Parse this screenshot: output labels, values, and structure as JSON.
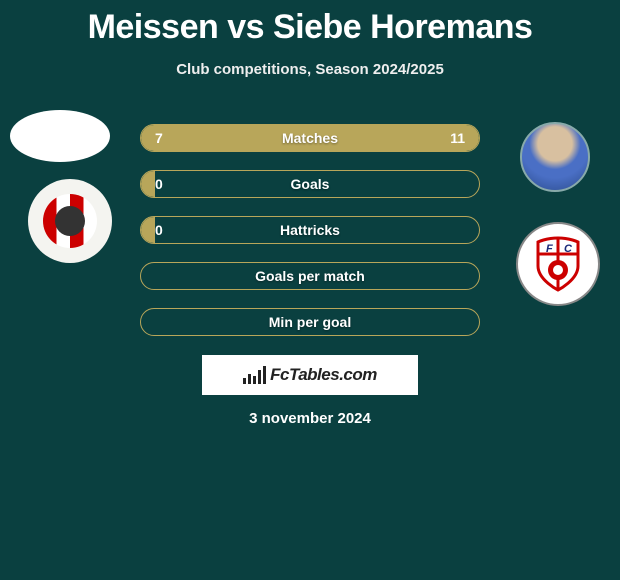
{
  "title": "Meissen vs Siebe Horemans",
  "subtitle": "Club competitions, Season 2024/2025",
  "date": "3 november 2024",
  "logo_text": "FcTables.com",
  "colors": {
    "background": "#0a4040",
    "bar_border": "#b8a65a",
    "bar_fill": "#b8a65a",
    "text": "#ffffff"
  },
  "players": {
    "left": {
      "name": "Meissen",
      "club": "Sparta Rotterdam"
    },
    "right": {
      "name": "Siebe Horemans",
      "club": "FC Utrecht"
    }
  },
  "stats": [
    {
      "label": "Matches",
      "left_value": "7",
      "right_value": "11",
      "left_fill_pct": 39,
      "right_fill_pct": 61
    },
    {
      "label": "Goals",
      "left_value": "0",
      "right_value": "",
      "left_fill_pct": 4,
      "right_fill_pct": 0
    },
    {
      "label": "Hattricks",
      "left_value": "0",
      "right_value": "",
      "left_fill_pct": 4,
      "right_fill_pct": 0
    },
    {
      "label": "Goals per match",
      "left_value": "",
      "right_value": "",
      "left_fill_pct": 0,
      "right_fill_pct": 0
    },
    {
      "label": "Min per goal",
      "left_value": "",
      "right_value": "",
      "left_fill_pct": 0,
      "right_fill_pct": 0
    }
  ]
}
